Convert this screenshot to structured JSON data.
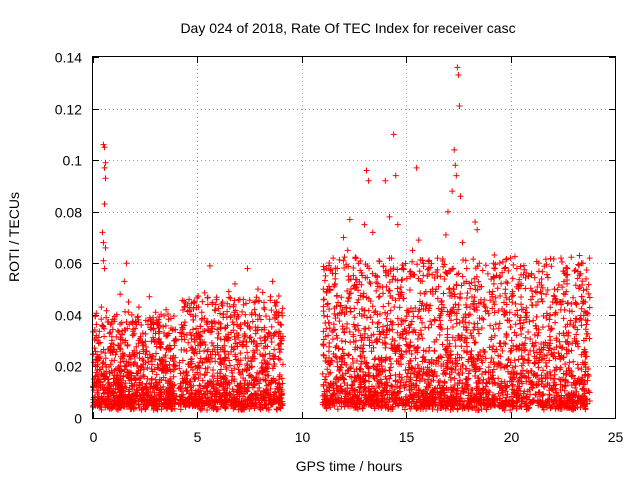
{
  "chart_data": {
    "type": "scatter",
    "title": "Day 024 of 2018, Rate Of TEC Index for receiver casc",
    "xlabel": "GPS time / hours",
    "ylabel": "ROTI / TECUs",
    "xlim": [
      0,
      25
    ],
    "ylim": [
      0,
      0.14
    ],
    "xticks": [
      0,
      5,
      10,
      15,
      20,
      25
    ],
    "xtick_labels": [
      "0",
      "5",
      "10",
      "15",
      "20",
      "25"
    ],
    "yticks": [
      0,
      0.02,
      0.04,
      0.06,
      0.08,
      0.1,
      0.12,
      0.14
    ],
    "ytick_labels": [
      "0",
      "0.02",
      "0.04",
      "0.06",
      "0.08",
      "0.1",
      "0.12",
      "0.14"
    ],
    "grid": true,
    "marker": "+",
    "marker_color": "#ff0000",
    "series": [
      {
        "name": "ROTI",
        "points": [
          [
            0.5,
            0.106
          ],
          [
            0.55,
            0.105
          ],
          [
            0.6,
            0.099
          ],
          [
            0.55,
            0.097
          ],
          [
            0.6,
            0.093
          ],
          [
            0.55,
            0.083
          ],
          [
            0.45,
            0.072
          ],
          [
            0.5,
            0.068
          ],
          [
            0.6,
            0.066
          ],
          [
            0.5,
            0.061
          ],
          [
            0.55,
            0.058
          ],
          [
            0.4,
            0.043
          ],
          [
            0.2,
            0.03
          ],
          [
            1.3,
            0.048
          ],
          [
            1.6,
            0.06
          ],
          [
            1.5,
            0.053
          ],
          [
            1.7,
            0.045
          ],
          [
            2.2,
            0.043
          ],
          [
            2.7,
            0.047
          ],
          [
            3.0,
            0.041
          ],
          [
            3.5,
            0.042
          ],
          [
            4.6,
            0.046
          ],
          [
            4.8,
            0.038
          ],
          [
            5.5,
            0.044
          ],
          [
            5.6,
            0.059
          ],
          [
            6.5,
            0.049
          ],
          [
            6.8,
            0.052
          ],
          [
            7.2,
            0.046
          ],
          [
            7.4,
            0.058
          ],
          [
            7.9,
            0.05
          ],
          [
            8.5,
            0.047
          ],
          [
            8.6,
            0.053
          ],
          [
            8.9,
            0.041
          ],
          [
            11.5,
            0.062
          ],
          [
            11.7,
            0.058
          ],
          [
            11.6,
            0.052
          ],
          [
            12.0,
            0.07
          ],
          [
            12.3,
            0.077
          ],
          [
            12.2,
            0.065
          ],
          [
            12.6,
            0.062
          ],
          [
            13.0,
            0.075
          ],
          [
            13.1,
            0.096
          ],
          [
            13.2,
            0.092
          ],
          [
            13.4,
            0.072
          ],
          [
            13.6,
            0.055
          ],
          [
            14.0,
            0.092
          ],
          [
            14.2,
            0.078
          ],
          [
            14.3,
            0.062
          ],
          [
            14.4,
            0.11
          ],
          [
            14.5,
            0.094
          ],
          [
            14.6,
            0.075
          ],
          [
            14.8,
            0.058
          ],
          [
            15.3,
            0.065
          ],
          [
            15.6,
            0.069
          ],
          [
            15.5,
            0.097
          ],
          [
            16.5,
            0.062
          ],
          [
            16.9,
            0.071
          ],
          [
            17.0,
            0.08
          ],
          [
            17.2,
            0.088
          ],
          [
            17.3,
            0.104
          ],
          [
            17.35,
            0.098
          ],
          [
            17.4,
            0.094
          ],
          [
            17.45,
            0.136
          ],
          [
            17.5,
            0.133
          ],
          [
            17.55,
            0.121
          ],
          [
            17.6,
            0.086
          ],
          [
            17.7,
            0.068
          ],
          [
            17.9,
            0.058
          ],
          [
            18.3,
            0.076
          ],
          [
            18.4,
            0.073
          ],
          [
            18.5,
            0.06
          ],
          [
            19.2,
            0.052
          ],
          [
            19.5,
            0.055
          ],
          [
            19.7,
            0.058
          ],
          [
            20.0,
            0.062
          ],
          [
            20.3,
            0.058
          ],
          [
            20.5,
            0.052
          ],
          [
            21.0,
            0.056
          ],
          [
            21.2,
            0.049
          ],
          [
            21.7,
            0.048
          ],
          [
            22.1,
            0.05
          ],
          [
            22.4,
            0.045
          ],
          [
            23.3,
            0.063
          ],
          [
            23.4,
            0.06
          ],
          [
            23.4,
            0.047
          ],
          [
            23.5,
            0.045
          ],
          [
            23.6,
            0.038
          ]
        ],
        "density_segments": [
          {
            "x": [
              0.0,
              4.0
            ],
            "y_low": 0.003,
            "y_high_max": 0.038,
            "count": 900
          },
          {
            "x": [
              4.1,
              9.1
            ],
            "y_low": 0.003,
            "y_high_max": 0.045,
            "count": 1000
          },
          {
            "x": [
              11.0,
              23.8
            ],
            "y_low": 0.003,
            "y_high_max": 0.06,
            "count": 2600
          }
        ]
      }
    ]
  }
}
